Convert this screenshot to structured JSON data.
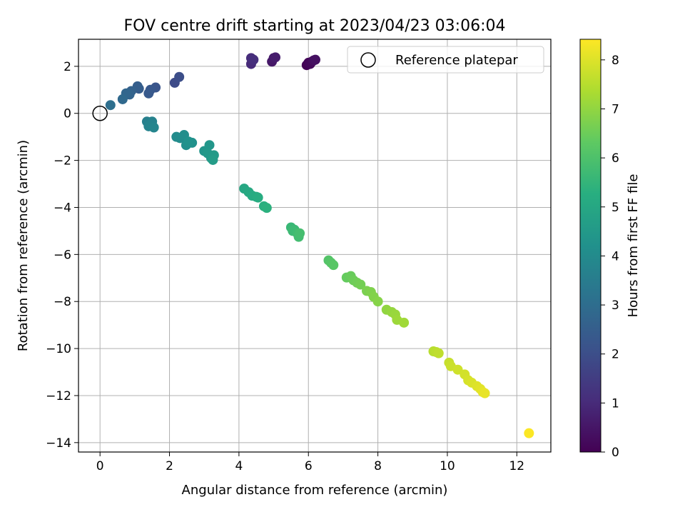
{
  "chart_data": {
    "type": "scatter",
    "title": "FOV centre drift starting at 2023/04/23 03:06:04",
    "xlabel": "Angular distance from reference (arcmin)",
    "ylabel": "Rotation from reference (arcmin)",
    "xlim": [
      -0.62,
      12.98
    ],
    "ylim": [
      -14.4,
      3.15
    ],
    "xticks": [
      0,
      2,
      4,
      6,
      8,
      10,
      12
    ],
    "yticks": [
      -14,
      -12,
      -10,
      -8,
      -6,
      -4,
      -2,
      0,
      2
    ],
    "grid": true,
    "colormap": "viridis",
    "colorbar": {
      "label": "Hours from first FF file",
      "range": [
        0,
        8.42
      ],
      "ticks": [
        0,
        1,
        2,
        3,
        4,
        5,
        6,
        7,
        8
      ]
    },
    "legend": {
      "position": "top-right",
      "entries": [
        "Reference platepar"
      ]
    },
    "reference_point": {
      "x": 0,
      "y": 0
    },
    "points": [
      {
        "x": 5.95,
        "y": 2.05,
        "t": 0.05
      },
      {
        "x": 6.0,
        "y": 2.15,
        "t": 0.1
      },
      {
        "x": 6.05,
        "y": 2.1,
        "t": 0.15
      },
      {
        "x": 6.1,
        "y": 2.2,
        "t": 0.2
      },
      {
        "x": 6.15,
        "y": 2.25,
        "t": 0.3
      },
      {
        "x": 6.2,
        "y": 2.28,
        "t": 0.35
      },
      {
        "x": 4.95,
        "y": 2.2,
        "t": 0.55
      },
      {
        "x": 5.0,
        "y": 2.35,
        "t": 0.6
      },
      {
        "x": 5.05,
        "y": 2.38,
        "t": 0.65
      },
      {
        "x": 4.35,
        "y": 2.1,
        "t": 1.0
      },
      {
        "x": 4.35,
        "y": 2.35,
        "t": 1.05
      },
      {
        "x": 4.42,
        "y": 2.28,
        "t": 1.1
      },
      {
        "x": 2.15,
        "y": 1.3,
        "t": 1.9
      },
      {
        "x": 2.28,
        "y": 1.55,
        "t": 2.0
      },
      {
        "x": 1.6,
        "y": 1.1,
        "t": 2.2
      },
      {
        "x": 1.45,
        "y": 1.0,
        "t": 2.3
      },
      {
        "x": 1.4,
        "y": 0.85,
        "t": 2.35
      },
      {
        "x": 1.12,
        "y": 1.05,
        "t": 2.45
      },
      {
        "x": 1.08,
        "y": 1.15,
        "t": 2.5
      },
      {
        "x": 0.9,
        "y": 0.95,
        "t": 2.6
      },
      {
        "x": 0.85,
        "y": 0.8,
        "t": 2.7
      },
      {
        "x": 0.75,
        "y": 0.85,
        "t": 2.75
      },
      {
        "x": 0.65,
        "y": 0.6,
        "t": 2.85
      },
      {
        "x": 0.3,
        "y": 0.35,
        "t": 3.05
      },
      {
        "x": 1.35,
        "y": -0.35,
        "t": 3.6
      },
      {
        "x": 1.45,
        "y": -0.45,
        "t": 3.65
      },
      {
        "x": 1.5,
        "y": -0.35,
        "t": 3.7
      },
      {
        "x": 1.4,
        "y": -0.55,
        "t": 3.75
      },
      {
        "x": 1.55,
        "y": -0.6,
        "t": 3.8
      },
      {
        "x": 2.2,
        "y": -1.0,
        "t": 4.0
      },
      {
        "x": 2.3,
        "y": -1.05,
        "t": 4.05
      },
      {
        "x": 2.42,
        "y": -0.92,
        "t": 4.1
      },
      {
        "x": 2.48,
        "y": -1.35,
        "t": 4.15
      },
      {
        "x": 2.65,
        "y": -1.25,
        "t": 4.2
      },
      {
        "x": 2.55,
        "y": -1.2,
        "t": 4.25
      },
      {
        "x": 3.0,
        "y": -1.6,
        "t": 4.35
      },
      {
        "x": 3.15,
        "y": -1.35,
        "t": 4.4
      },
      {
        "x": 3.1,
        "y": -1.7,
        "t": 4.45
      },
      {
        "x": 3.2,
        "y": -1.9,
        "t": 4.5
      },
      {
        "x": 3.28,
        "y": -1.78,
        "t": 4.55
      },
      {
        "x": 3.25,
        "y": -1.98,
        "t": 4.6
      },
      {
        "x": 4.15,
        "y": -3.2,
        "t": 5.0
      },
      {
        "x": 4.28,
        "y": -3.35,
        "t": 5.05
      },
      {
        "x": 4.38,
        "y": -3.5,
        "t": 5.1
      },
      {
        "x": 4.5,
        "y": -3.55,
        "t": 5.15
      },
      {
        "x": 4.55,
        "y": -3.58,
        "t": 5.2
      },
      {
        "x": 4.72,
        "y": -3.95,
        "t": 5.3
      },
      {
        "x": 4.8,
        "y": -4.02,
        "t": 5.35
      },
      {
        "x": 5.5,
        "y": -4.85,
        "t": 5.6
      },
      {
        "x": 5.6,
        "y": -4.95,
        "t": 5.65
      },
      {
        "x": 5.55,
        "y": -5.0,
        "t": 5.7
      },
      {
        "x": 5.68,
        "y": -5.1,
        "t": 5.75
      },
      {
        "x": 5.72,
        "y": -5.25,
        "t": 5.8
      },
      {
        "x": 5.75,
        "y": -5.1,
        "t": 5.85
      },
      {
        "x": 6.58,
        "y": -6.25,
        "t": 6.1
      },
      {
        "x": 6.65,
        "y": -6.35,
        "t": 6.15
      },
      {
        "x": 6.72,
        "y": -6.45,
        "t": 6.2
      },
      {
        "x": 7.1,
        "y": -6.98,
        "t": 6.4
      },
      {
        "x": 7.22,
        "y": -6.92,
        "t": 6.45
      },
      {
        "x": 7.3,
        "y": -7.1,
        "t": 6.5
      },
      {
        "x": 7.4,
        "y": -7.2,
        "t": 6.55
      },
      {
        "x": 7.5,
        "y": -7.28,
        "t": 6.6
      },
      {
        "x": 7.68,
        "y": -7.55,
        "t": 6.7
      },
      {
        "x": 7.8,
        "y": -7.6,
        "t": 6.75
      },
      {
        "x": 7.88,
        "y": -7.8,
        "t": 6.8
      },
      {
        "x": 8.0,
        "y": -8.0,
        "t": 6.85
      },
      {
        "x": 8.25,
        "y": -8.35,
        "t": 7.0
      },
      {
        "x": 8.4,
        "y": -8.45,
        "t": 7.05
      },
      {
        "x": 8.5,
        "y": -8.55,
        "t": 7.1
      },
      {
        "x": 8.55,
        "y": -8.78,
        "t": 7.15
      },
      {
        "x": 8.75,
        "y": -8.9,
        "t": 7.2
      },
      {
        "x": 9.6,
        "y": -10.12,
        "t": 7.5
      },
      {
        "x": 9.68,
        "y": -10.15,
        "t": 7.55
      },
      {
        "x": 9.75,
        "y": -10.2,
        "t": 7.6
      },
      {
        "x": 10.05,
        "y": -10.6,
        "t": 7.7
      },
      {
        "x": 10.1,
        "y": -10.75,
        "t": 7.75
      },
      {
        "x": 10.3,
        "y": -10.9,
        "t": 7.8
      },
      {
        "x": 10.5,
        "y": -11.1,
        "t": 7.85
      },
      {
        "x": 10.6,
        "y": -11.35,
        "t": 7.9
      },
      {
        "x": 10.7,
        "y": -11.45,
        "t": 7.95
      },
      {
        "x": 10.85,
        "y": -11.6,
        "t": 8.0
      },
      {
        "x": 10.95,
        "y": -11.72,
        "t": 8.05
      },
      {
        "x": 11.02,
        "y": -11.85,
        "t": 8.1
      },
      {
        "x": 11.08,
        "y": -11.9,
        "t": 8.15
      },
      {
        "x": 12.35,
        "y": -13.6,
        "t": 8.4
      }
    ]
  }
}
